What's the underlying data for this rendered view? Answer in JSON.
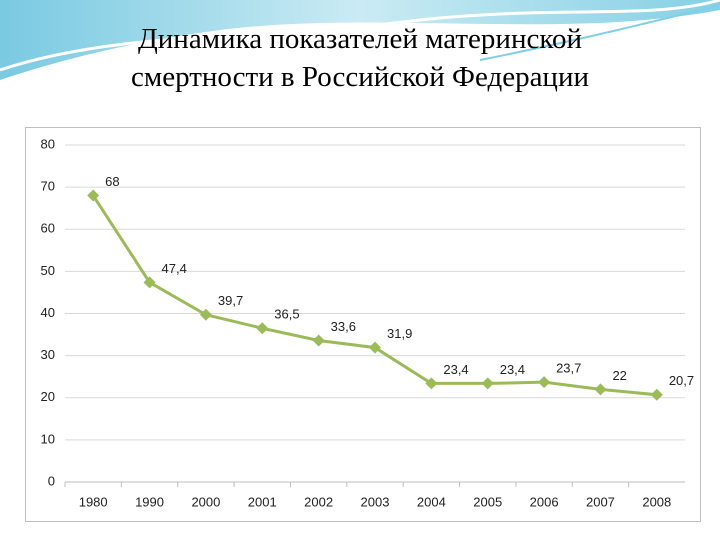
{
  "chart_data": {
    "type": "line",
    "title": [
      "Динамика показателей материнской",
      "смертности в Российской Федерации"
    ],
    "categories": [
      "1980",
      "1990",
      "2000",
      "2001",
      "2002",
      "2003",
      "2004",
      "2005",
      "2006",
      "2007",
      "2008"
    ],
    "values": [
      68,
      47.4,
      39.7,
      36.5,
      33.6,
      31.9,
      23.4,
      23.4,
      23.7,
      22,
      20.7
    ],
    "value_labels": [
      "68",
      "47,4",
      "39,7",
      "36,5",
      "33,6",
      "31,9",
      "23,4",
      "23,4",
      "23,7",
      "22",
      "20,7"
    ],
    "color": "#9bbb59",
    "ylim": [
      0,
      80
    ],
    "yticks": [
      0,
      10,
      20,
      30,
      40,
      50,
      60,
      70,
      80
    ],
    "grid": true
  }
}
